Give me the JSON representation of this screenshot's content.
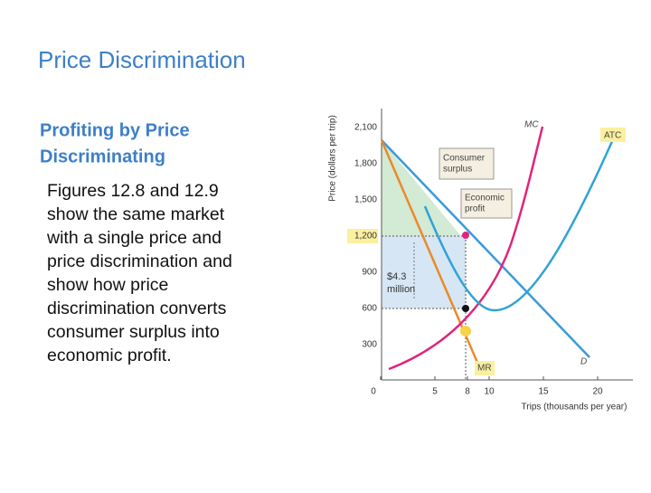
{
  "slide": {
    "title": "Price Discrimination",
    "subheading": [
      "Profiting by Price",
      "Discriminating"
    ],
    "body": [
      "Figures 12.8 and 12.9",
      "show the same market",
      "with a single price and",
      "price discrimination and",
      "show how price",
      "discrimination converts",
      "consumer surplus into",
      "economic profit."
    ]
  },
  "figure": {
    "y_axis_label": "Price (dollars per trip)",
    "x_axis_label": "Trips (thousands per year)",
    "yticks": [
      {
        "value": 300,
        "label": "300"
      },
      {
        "value": 600,
        "label": "600"
      },
      {
        "value": 900,
        "label": "900"
      },
      {
        "value": 1200,
        "label": "1,200"
      },
      {
        "value": 1500,
        "label": "1,500"
      },
      {
        "value": 1800,
        "label": "1,800"
      },
      {
        "value": 2100,
        "label": "2,100"
      }
    ],
    "xticks": [
      0,
      5,
      8,
      10,
      15,
      20
    ],
    "curve_labels": {
      "mc": "MC",
      "atc": "ATC",
      "d": "D",
      "mr": "MR"
    },
    "consumer_surplus": [
      "Consumer",
      "surplus"
    ],
    "economic_profit": [
      "Economic",
      "profit"
    ],
    "profit_amount": [
      "$4.3",
      "million"
    ]
  }
}
